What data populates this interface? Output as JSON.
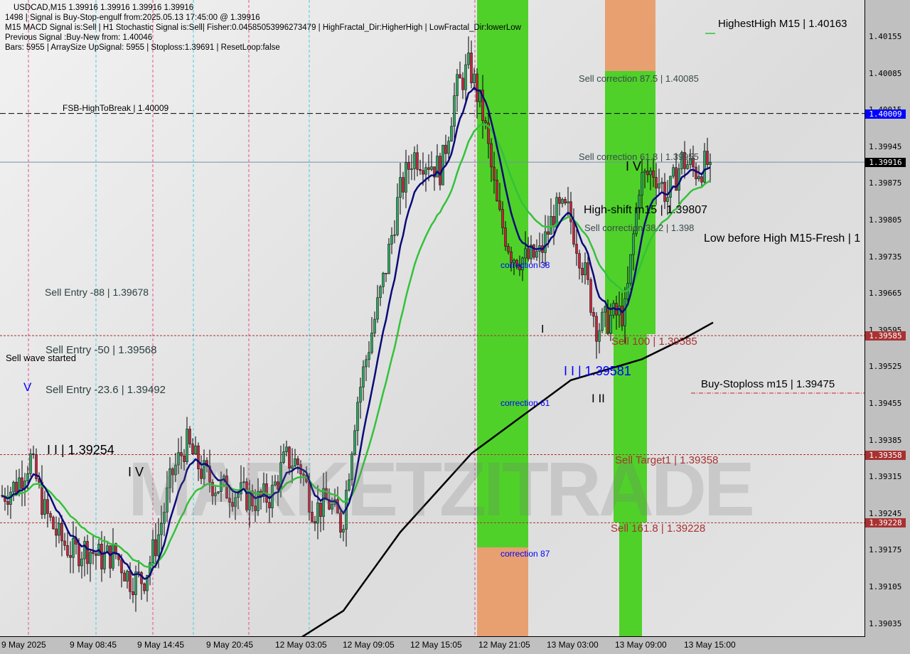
{
  "header": {
    "line1": "USDCAD,M15  1.39916 1.39916 1.39916 1.39916",
    "line2": "1498 | Signal is Buy-Stop-engulf from:2025.05.13 17:45:00 @ 1.39916",
    "line3": "M15 MACD Signal is:Sell | H1 Stochastic Signal is:Sell| Fisher:0.04585053996273479 | HighFractal_Dir:HigherHigh | LowFractal_Dir:lowerLow",
    "line4": "Previous Signal :Buy-New from: 1.40046",
    "line5": "Bars: 5955 | ArraySize UpSignal: 5955 | Stoploss:1.39691 | ResetLoop:false"
  },
  "watermark": "MARKETZITRADE",
  "colors": {
    "bull": "#2fa35f",
    "bear": "#c4243a",
    "fast_ma": "#0a0a7a",
    "mid_ma": "#33c23a",
    "long_ma": "#000000",
    "zone_green": "#4fd12a",
    "zone_orange": "#e8a070",
    "current_price": "#000000",
    "fsb": "#0000ff",
    "level_red": "#a83232"
  },
  "chart_data": {
    "type": "candlestick",
    "symbol": "USDCAD",
    "timeframe": "M15",
    "x_ticks": [
      "9 May 2025",
      "9 May 08:45",
      "9 May 14:45",
      "9 May 20:45",
      "12 May 03:05",
      "12 May 09:05",
      "12 May 15:05",
      "12 May 21:05",
      "13 May 03:00",
      "13 May 09:00",
      "13 May 15:00"
    ],
    "y_ticks": [
      "1.40155",
      "1.40085",
      "1.40015",
      "1.39945",
      "1.39875",
      "1.39805",
      "1.39735",
      "1.39665",
      "1.39595",
      "1.39525",
      "1.39455",
      "1.39385",
      "1.39315",
      "1.39245",
      "1.39175",
      "1.39105",
      "1.39035"
    ],
    "ylim": [
      1.39,
      1.402
    ],
    "close_path_hourly": [
      1.3928,
      1.393,
      1.3935,
      1.3925,
      1.392,
      1.3917,
      1.3918,
      1.3916,
      1.3917,
      1.3912,
      1.3912,
      1.392,
      1.3932,
      1.3938,
      1.3933,
      1.393,
      1.3929,
      1.3928,
      1.3927,
      1.3928,
      1.3935,
      1.3934,
      1.3925,
      1.3927,
      1.3922,
      1.3945,
      1.3958,
      1.397,
      1.3985,
      1.3993,
      1.3992,
      1.399,
      1.4005,
      1.401,
      1.4,
      1.3982,
      1.3974,
      1.3973,
      1.3974,
      1.3982,
      1.3982,
      1.3972,
      1.396,
      1.3962,
      1.3963,
      1.3988,
      1.399,
      1.3985,
      1.3992,
      1.399,
      1.39916
    ],
    "long_ma_path": [
      [
        0.41,
        1.39
      ],
      [
        0.48,
        1.3906
      ],
      [
        0.56,
        1.3921
      ],
      [
        0.66,
        1.3936
      ],
      [
        0.73,
        1.3943
      ],
      [
        0.8,
        1.395
      ],
      [
        0.9,
        1.3954
      ],
      [
        0.96,
        1.3958
      ],
      [
        1.0,
        1.3961
      ]
    ],
    "last_price": "1.39916",
    "highlighted_prices": [
      {
        "price": "1.40009",
        "color": "#0000ff"
      },
      {
        "price": "1.39916",
        "color": "#000000"
      },
      {
        "price": "1.39585",
        "color": "#a83232"
      },
      {
        "price": "1.39358",
        "color": "#a83232"
      },
      {
        "price": "1.39228",
        "color": "#a83232"
      }
    ],
    "levels": [
      {
        "price": 1.40009,
        "style": "dashed",
        "color": "#000000"
      },
      {
        "price": 1.39916,
        "style": "solid",
        "color": "#7a8ea8"
      },
      {
        "price": 1.39585,
        "style": "dotted",
        "color": "#a83232"
      },
      {
        "price": 1.39358,
        "style": "dotted",
        "color": "#a83232"
      },
      {
        "price": 1.39228,
        "style": "dotted",
        "color": "#a83232"
      }
    ],
    "annotations": {
      "highest_high": "HighestHigh    M15 | 1.40163",
      "fsb": "FSB-HighToBreak | 1.40009",
      "sell_corr_875": "Sell correction 87.5 | 1.40085",
      "sell_corr_618": "Sell correction 61.8 | 1.39955",
      "sell_corr_382": "Sell correction 38.2 | 1.398",
      "high_shift": "High-shift m15 | 1.39807",
      "low_before_high": "Low before High    M15-Fresh | 1",
      "correction_38": "correction 38",
      "correction_61": "correction 61",
      "correction_87": "correction 87",
      "sell_entry_88": "Sell Entry -88 | 1.39678",
      "sell_entry_50": "Sell Entry -50 | 1.39568",
      "sell_entry_236": "Sell Entry -23.6 | 1.39492",
      "sell_wave": "Sell wave started",
      "wave_v": "V",
      "wave_ii_left": "I I | 1.39254",
      "wave_iv_left": "I V",
      "wave_iv_right": "I V",
      "wave_ii_right": "I I | 1.39581",
      "wave_i": "I",
      "wave_iii": "I II",
      "sell_100": "Sell 100 | 1.39585",
      "buy_stoploss": "Buy-Stoploss m15 | 1.39475",
      "sell_target1": "Sell Target1 | 1.39358",
      "sell_1618": "Sell 161.8 | 1.39228"
    }
  }
}
